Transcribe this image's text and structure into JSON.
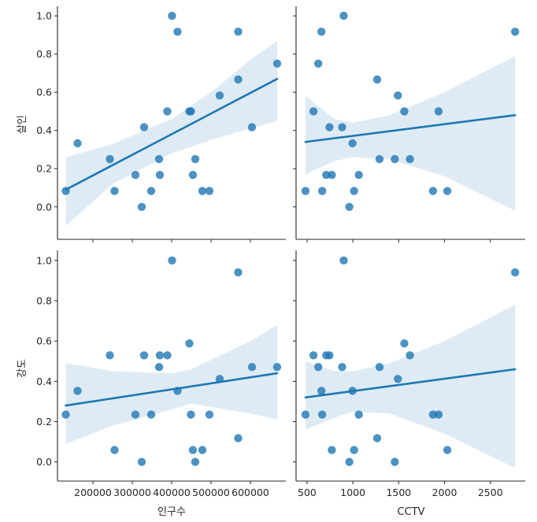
{
  "chart_data": {
    "type": "scatter",
    "subtype": "pairplot-regression",
    "title": "",
    "color": "#1f77b4",
    "point_alpha": 0.8,
    "ci_alpha": 0.15,
    "x_vars": [
      {
        "name": "인구수",
        "label": "인구수",
        "xlim": [
          110000,
          690000
        ],
        "ticks": [
          200000,
          300000,
          400000,
          500000,
          600000
        ],
        "tick_labels": [
          "200000",
          "300000",
          "400000",
          "500000",
          "600000"
        ]
      },
      {
        "name": "CCTV",
        "label": "CCTV",
        "xlim": [
          380,
          2880
        ],
        "ticks": [
          500,
          1000,
          1500,
          2000,
          2500
        ],
        "tick_labels": [
          "500",
          "1000",
          "1500",
          "2000",
          "2500"
        ]
      }
    ],
    "y_vars": [
      {
        "name": "살인",
        "label": "살인",
        "ylim": [
          -0.17,
          1.05
        ],
        "ticks": [
          0.0,
          0.2,
          0.4,
          0.6,
          0.8,
          1.0
        ],
        "tick_labels": [
          "0.0",
          "0.2",
          "0.4",
          "0.6",
          "0.8",
          "1.0"
        ]
      },
      {
        "name": "강도",
        "label": "강도",
        "ylim": [
          -0.095,
          1.05
        ],
        "ticks": [
          0.0,
          0.2,
          0.4,
          0.6,
          0.8,
          1.0
        ],
        "tick_labels": [
          "0.0",
          "0.2",
          "0.4",
          "0.6",
          "0.8",
          "1.0"
        ]
      }
    ],
    "records": [
      {
        "인구수": 131000,
        "CCTV": 483,
        "살인": 0.083,
        "강도": 0.235
      },
      {
        "인구수": 161000,
        "CCTV": 996,
        "살인": 0.333,
        "강도": 0.353
      },
      {
        "인구수": 243000,
        "CCTV": 1622,
        "살인": 0.25,
        "강도": 0.529
      },
      {
        "인구수": 255000,
        "CCTV": 1013,
        "살인": 0.083,
        "강도": 0.059
      },
      {
        "인구수": 308000,
        "CCTV": 1065,
        "살인": 0.167,
        "강도": 0.235
      },
      {
        "인구수": 324000,
        "CCTV": 961,
        "살인": 0.0,
        "강도": 0.0
      },
      {
        "인구수": 330000,
        "CCTV": 744,
        "살인": 0.417,
        "강도": 0.529
      },
      {
        "인구수": 348000,
        "CCTV": 665,
        "살인": 0.083,
        "강도": 0.235
      },
      {
        "인구수": 368000,
        "CCTV": 1291,
        "살인": 0.25,
        "강도": 0.471
      },
      {
        "인구수": 370000,
        "CCTV": 709,
        "살인": 0.167,
        "강도": 0.529
      },
      {
        "인구수": 389000,
        "CCTV": 570,
        "살인": 0.5,
        "강도": 0.529
      },
      {
        "인구수": 401000,
        "CCTV": 900,
        "살인": 1.0,
        "강도": 1.0
      },
      {
        "인구수": 415000,
        "CCTV": 657,
        "살인": 0.917,
        "강도": 0.353
      },
      {
        "인구수": 445000,
        "CCTV": 1561,
        "살인": 0.5,
        "강도": 0.588
      },
      {
        "인구수": 449000,
        "CCTV": 1935,
        "살인": 0.5,
        "강도": 0.235
      },
      {
        "인구수": 454000,
        "CCTV": 770,
        "살인": 0.167,
        "강도": 0.059
      },
      {
        "인구수": 460000,
        "CCTV": 1457,
        "살인": 0.25,
        "강도": 0.0
      },
      {
        "인구수": 478000,
        "CCTV": 2030,
        "살인": 0.083,
        "강도": 0.059
      },
      {
        "인구수": 496000,
        "CCTV": 1874,
        "살인": 0.083,
        "강도": 0.235
      },
      {
        "인구수": 522000,
        "CCTV": 1491,
        "살인": 0.583,
        "강도": 0.412
      },
      {
        "인구수": 569000,
        "CCTV": 2770,
        "살인": 0.917,
        "강도": 0.941
      },
      {
        "인구수": 569000,
        "CCTV": 1265,
        "살인": 0.667,
        "강도": 0.118
      },
      {
        "인구수": 604000,
        "CCTV": 883,
        "살인": 0.417,
        "강도": 0.471
      },
      {
        "인구수": 668000,
        "CCTV": 622,
        "살인": 0.75,
        "강도": 0.471
      }
    ],
    "regressions": [
      {
        "x": "인구수",
        "y": "살인",
        "line": [
          [
            131000,
            0.09
          ],
          [
            668000,
            0.67
          ]
        ],
        "ci": {
          "x": [
            131000,
            250000,
            400000,
            500000,
            600000,
            668000
          ],
          "upper": [
            0.26,
            0.33,
            0.46,
            0.6,
            0.77,
            0.87
          ],
          "lower": [
            -0.1,
            0.12,
            0.28,
            0.35,
            0.41,
            0.45
          ]
        }
      },
      {
        "x": "CCTV",
        "y": "살인",
        "line": [
          [
            483,
            0.34
          ],
          [
            2770,
            0.48
          ]
        ],
        "ci": {
          "x": [
            483,
            800,
            1000,
            1400,
            2000,
            2770
          ],
          "upper": [
            0.58,
            0.46,
            0.44,
            0.48,
            0.6,
            0.79
          ],
          "lower": [
            0.17,
            0.24,
            0.26,
            0.25,
            0.16,
            -0.02
          ]
        }
      },
      {
        "x": "인구수",
        "y": "강도",
        "line": [
          [
            131000,
            0.28
          ],
          [
            668000,
            0.44
          ]
        ],
        "ci": {
          "x": [
            131000,
            250000,
            400000,
            450000,
            600000,
            668000
          ],
          "upper": [
            0.49,
            0.45,
            0.44,
            0.46,
            0.6,
            0.68
          ],
          "lower": [
            0.09,
            0.18,
            0.26,
            0.29,
            0.24,
            0.21
          ]
        }
      },
      {
        "x": "CCTV",
        "y": "강도",
        "line": [
          [
            483,
            0.32
          ],
          [
            2770,
            0.46
          ]
        ],
        "ci": {
          "x": [
            483,
            800,
            1000,
            1400,
            2000,
            2770
          ],
          "upper": [
            0.5,
            0.45,
            0.45,
            0.49,
            0.6,
            0.78
          ],
          "lower": [
            0.16,
            0.22,
            0.25,
            0.24,
            0.14,
            -0.03
          ]
        }
      }
    ]
  }
}
